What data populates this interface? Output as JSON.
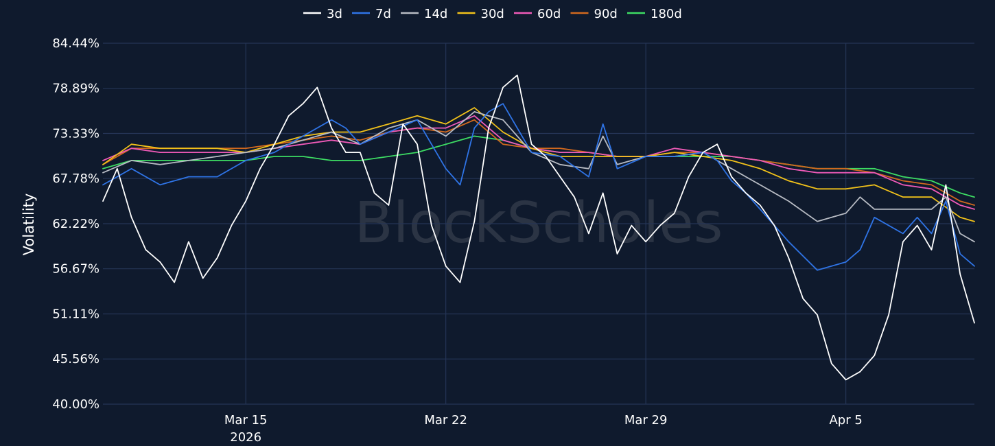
{
  "chart_data": {
    "type": "line",
    "ylabel": "Volatility",
    "watermark": "BlockScholes",
    "x_ticks": [
      {
        "date": "2026-03-15",
        "label": "Mar 15",
        "sublabel": "2026"
      },
      {
        "date": "2026-03-22",
        "label": "Mar 22",
        "sublabel": ""
      },
      {
        "date": "2026-03-29",
        "label": "Mar 29",
        "sublabel": ""
      },
      {
        "date": "2026-04-05",
        "label": "Apr 5",
        "sublabel": ""
      }
    ],
    "y_ticks": [
      "40.00%",
      "45.56%",
      "51.11%",
      "56.67%",
      "62.22%",
      "67.78%",
      "73.33%",
      "78.89%",
      "84.44%"
    ],
    "ylim": [
      40.0,
      84.44
    ],
    "xlim": [
      "2026-03-10 00:00",
      "2026-04-09 12:00"
    ],
    "grid": true,
    "legend_position": "top-center",
    "series": [
      {
        "name": "3d",
        "color": "#ffffff",
        "x": [
          "2026-03-10 00:00",
          "2026-03-10 12:00",
          "2026-03-11 00:00",
          "2026-03-11 12:00",
          "2026-03-12 00:00",
          "2026-03-12 12:00",
          "2026-03-13 00:00",
          "2026-03-13 12:00",
          "2026-03-14 00:00",
          "2026-03-14 12:00",
          "2026-03-15 00:00",
          "2026-03-15 12:00",
          "2026-03-16 00:00",
          "2026-03-16 12:00",
          "2026-03-17 00:00",
          "2026-03-17 12:00",
          "2026-03-18 00:00",
          "2026-03-18 12:00",
          "2026-03-19 00:00",
          "2026-03-19 12:00",
          "2026-03-20 00:00",
          "2026-03-20 12:00",
          "2026-03-21 00:00",
          "2026-03-21 12:00",
          "2026-03-22 00:00",
          "2026-03-22 12:00",
          "2026-03-23 00:00",
          "2026-03-23 12:00",
          "2026-03-24 00:00",
          "2026-03-24 12:00",
          "2026-03-25 00:00",
          "2026-03-25 12:00",
          "2026-03-26 00:00",
          "2026-03-26 12:00",
          "2026-03-27 00:00",
          "2026-03-27 12:00",
          "2026-03-28 00:00",
          "2026-03-28 12:00",
          "2026-03-29 00:00",
          "2026-03-29 12:00",
          "2026-03-30 00:00",
          "2026-03-30 12:00",
          "2026-03-31 00:00",
          "2026-03-31 12:00",
          "2026-04-01 00:00",
          "2026-04-01 12:00",
          "2026-04-02 00:00",
          "2026-04-02 12:00",
          "2026-04-03 00:00",
          "2026-04-03 12:00",
          "2026-04-04 00:00",
          "2026-04-04 12:00",
          "2026-04-05 00:00",
          "2026-04-05 12:00",
          "2026-04-06 00:00",
          "2026-04-06 12:00",
          "2026-04-07 00:00",
          "2026-04-07 12:00",
          "2026-04-08 00:00",
          "2026-04-08 12:00",
          "2026-04-09 00:00",
          "2026-04-09 12:00"
        ],
        "y": [
          65.0,
          69.0,
          63.0,
          59.0,
          57.5,
          55.0,
          60.0,
          55.5,
          58.0,
          62.0,
          65.0,
          69.0,
          72.0,
          75.5,
          77.0,
          79.0,
          74.0,
          71.0,
          71.0,
          66.0,
          64.5,
          74.5,
          72.0,
          62.0,
          57.0,
          55.0,
          62.5,
          74.0,
          79.0,
          80.5,
          72.0,
          70.5,
          68.0,
          65.5,
          61.0,
          66.0,
          58.5,
          62.0,
          60.0,
          62.0,
          63.5,
          68.0,
          71.0,
          72.0,
          68.0,
          66.0,
          64.5,
          62.0,
          58.0,
          53.0,
          51.0,
          45.0,
          43.0,
          44.0,
          46.0,
          51.0,
          60.0,
          62.0,
          59.0,
          67.0,
          56.0,
          50.0
        ]
      },
      {
        "name": "7d",
        "color": "#2f74e6",
        "x": [
          "2026-03-10 00:00",
          "2026-03-11 00:00",
          "2026-03-12 00:00",
          "2026-03-13 00:00",
          "2026-03-14 00:00",
          "2026-03-15 00:00",
          "2026-03-16 00:00",
          "2026-03-17 00:00",
          "2026-03-18 00:00",
          "2026-03-18 12:00",
          "2026-03-19 00:00",
          "2026-03-20 00:00",
          "2026-03-21 00:00",
          "2026-03-22 00:00",
          "2026-03-22 12:00",
          "2026-03-23 00:00",
          "2026-03-23 12:00",
          "2026-03-24 00:00",
          "2026-03-25 00:00",
          "2026-03-26 00:00",
          "2026-03-27 00:00",
          "2026-03-27 12:00",
          "2026-03-28 00:00",
          "2026-03-29 00:00",
          "2026-03-30 00:00",
          "2026-03-31 00:00",
          "2026-03-31 12:00",
          "2026-04-01 00:00",
          "2026-04-01 12:00",
          "2026-04-02 00:00",
          "2026-04-02 12:00",
          "2026-04-03 00:00",
          "2026-04-04 00:00",
          "2026-04-05 00:00",
          "2026-04-05 12:00",
          "2026-04-06 00:00",
          "2026-04-07 00:00",
          "2026-04-07 12:00",
          "2026-04-08 00:00",
          "2026-04-08 12:00",
          "2026-04-09 00:00",
          "2026-04-09 12:00"
        ],
        "y": [
          67.0,
          69.0,
          67.0,
          68.0,
          68.0,
          70.0,
          71.0,
          73.0,
          75.0,
          74.0,
          72.0,
          73.5,
          75.0,
          69.0,
          67.0,
          74.0,
          76.0,
          77.0,
          71.0,
          70.5,
          68.0,
          74.5,
          69.0,
          70.5,
          70.5,
          71.0,
          70.0,
          67.5,
          66.0,
          64.0,
          62.0,
          60.0,
          56.5,
          57.5,
          59.0,
          63.0,
          61.0,
          63.0,
          61.0,
          65.0,
          58.5,
          57.0
        ]
      },
      {
        "name": "14d",
        "color": "#b8bcc4",
        "x": [
          "2026-03-10 00:00",
          "2026-03-11 00:00",
          "2026-03-12 00:00",
          "2026-03-13 00:00",
          "2026-03-14 00:00",
          "2026-03-15 00:00",
          "2026-03-16 00:00",
          "2026-03-17 00:00",
          "2026-03-18 00:00",
          "2026-03-19 00:00",
          "2026-03-20 00:00",
          "2026-03-21 00:00",
          "2026-03-22 00:00",
          "2026-03-23 00:00",
          "2026-03-24 00:00",
          "2026-03-25 00:00",
          "2026-03-26 00:00",
          "2026-03-27 00:00",
          "2026-03-27 12:00",
          "2026-03-28 00:00",
          "2026-03-29 00:00",
          "2026-03-30 00:00",
          "2026-03-31 00:00",
          "2026-04-01 00:00",
          "2026-04-01 12:00",
          "2026-04-02 00:00",
          "2026-04-03 00:00",
          "2026-04-04 00:00",
          "2026-04-05 00:00",
          "2026-04-05 12:00",
          "2026-04-06 00:00",
          "2026-04-07 00:00",
          "2026-04-08 00:00",
          "2026-04-08 12:00",
          "2026-04-09 00:00",
          "2026-04-09 12:00"
        ],
        "y": [
          68.5,
          70.0,
          69.5,
          70.0,
          70.5,
          71.0,
          71.5,
          72.5,
          73.5,
          72.0,
          74.0,
          75.0,
          73.0,
          76.0,
          75.0,
          71.0,
          69.5,
          69.0,
          73.0,
          69.5,
          70.5,
          70.5,
          71.0,
          69.0,
          68.0,
          67.0,
          65.0,
          62.5,
          63.5,
          65.5,
          64.0,
          64.0,
          64.0,
          65.5,
          61.0,
          60.0
        ]
      },
      {
        "name": "30d",
        "color": "#f2c21a",
        "x": [
          "2026-03-10 00:00",
          "2026-03-11 00:00",
          "2026-03-12 00:00",
          "2026-03-13 00:00",
          "2026-03-14 00:00",
          "2026-03-15 00:00",
          "2026-03-16 00:00",
          "2026-03-17 00:00",
          "2026-03-18 00:00",
          "2026-03-19 00:00",
          "2026-03-20 00:00",
          "2026-03-21 00:00",
          "2026-03-22 00:00",
          "2026-03-23 00:00",
          "2026-03-24 00:00",
          "2026-03-25 00:00",
          "2026-03-26 00:00",
          "2026-03-27 00:00",
          "2026-03-28 00:00",
          "2026-03-29 00:00",
          "2026-03-30 00:00",
          "2026-03-31 00:00",
          "2026-04-01 00:00",
          "2026-04-02 00:00",
          "2026-04-03 00:00",
          "2026-04-04 00:00",
          "2026-04-05 00:00",
          "2026-04-06 00:00",
          "2026-04-07 00:00",
          "2026-04-08 00:00",
          "2026-04-09 00:00",
          "2026-04-09 12:00"
        ],
        "y": [
          69.5,
          72.0,
          71.5,
          71.5,
          71.5,
          71.0,
          72.0,
          73.0,
          73.5,
          73.5,
          74.5,
          75.5,
          74.5,
          76.5,
          73.5,
          71.5,
          70.5,
          70.5,
          70.5,
          70.5,
          71.0,
          70.5,
          70.0,
          69.0,
          67.5,
          66.5,
          66.5,
          67.0,
          65.5,
          65.5,
          63.0,
          62.5
        ]
      },
      {
        "name": "60d",
        "color": "#ef5ab8",
        "x": [
          "2026-03-10 00:00",
          "2026-03-11 00:00",
          "2026-03-12 00:00",
          "2026-03-13 00:00",
          "2026-03-14 00:00",
          "2026-03-15 00:00",
          "2026-03-16 00:00",
          "2026-03-17 00:00",
          "2026-03-18 00:00",
          "2026-03-19 00:00",
          "2026-03-20 00:00",
          "2026-03-21 00:00",
          "2026-03-22 00:00",
          "2026-03-23 00:00",
          "2026-03-24 00:00",
          "2026-03-25 00:00",
          "2026-03-26 00:00",
          "2026-03-27 00:00",
          "2026-03-28 00:00",
          "2026-03-29 00:00",
          "2026-03-30 00:00",
          "2026-03-31 00:00",
          "2026-04-01 00:00",
          "2026-04-02 00:00",
          "2026-04-03 00:00",
          "2026-04-04 00:00",
          "2026-04-05 00:00",
          "2026-04-06 00:00",
          "2026-04-07 00:00",
          "2026-04-08 00:00",
          "2026-04-09 00:00",
          "2026-04-09 12:00"
        ],
        "y": [
          70.0,
          71.5,
          71.0,
          71.0,
          71.0,
          71.0,
          71.5,
          72.0,
          72.5,
          72.0,
          73.5,
          74.0,
          74.0,
          75.5,
          72.5,
          71.5,
          71.0,
          71.0,
          70.5,
          70.5,
          71.5,
          71.0,
          70.5,
          70.0,
          69.0,
          68.5,
          68.5,
          68.5,
          67.0,
          66.5,
          64.5,
          64.0
        ]
      },
      {
        "name": "90d",
        "color": "#d2691e",
        "x": [
          "2026-03-10 00:00",
          "2026-03-11 00:00",
          "2026-03-12 00:00",
          "2026-03-13 00:00",
          "2026-03-14 00:00",
          "2026-03-15 00:00",
          "2026-03-16 00:00",
          "2026-03-17 00:00",
          "2026-03-18 00:00",
          "2026-03-19 00:00",
          "2026-03-20 00:00",
          "2026-03-21 00:00",
          "2026-03-22 00:00",
          "2026-03-23 00:00",
          "2026-03-24 00:00",
          "2026-03-25 00:00",
          "2026-03-26 00:00",
          "2026-03-27 00:00",
          "2026-03-28 00:00",
          "2026-03-29 00:00",
          "2026-03-30 00:00",
          "2026-03-31 00:00",
          "2026-04-01 00:00",
          "2026-04-02 00:00",
          "2026-04-03 00:00",
          "2026-04-04 00:00",
          "2026-04-05 00:00",
          "2026-04-06 00:00",
          "2026-04-07 00:00",
          "2026-04-08 00:00",
          "2026-04-09 00:00",
          "2026-04-09 12:00"
        ],
        "y": [
          69.5,
          71.5,
          71.5,
          71.5,
          71.5,
          71.5,
          72.0,
          72.5,
          73.0,
          72.5,
          73.5,
          74.0,
          73.5,
          75.0,
          72.0,
          71.5,
          71.5,
          71.0,
          70.5,
          70.5,
          71.0,
          71.0,
          70.5,
          70.0,
          69.5,
          69.0,
          69.0,
          68.5,
          67.5,
          67.0,
          65.0,
          64.5
        ]
      },
      {
        "name": "180d",
        "color": "#3ddc63",
        "x": [
          "2026-03-10 00:00",
          "2026-03-11 00:00",
          "2026-03-12 00:00",
          "2026-03-13 00:00",
          "2026-03-14 00:00",
          "2026-03-15 00:00",
          "2026-03-16 00:00",
          "2026-03-17 00:00",
          "2026-03-18 00:00",
          "2026-03-19 00:00",
          "2026-03-20 00:00",
          "2026-03-21 00:00",
          "2026-03-22 00:00",
          "2026-03-23 00:00",
          "2026-03-24 00:00",
          "2026-03-25 00:00",
          "2026-03-26 00:00",
          "2026-03-27 00:00",
          "2026-03-28 00:00",
          "2026-03-29 00:00",
          "2026-03-30 00:00",
          "2026-03-31 00:00",
          "2026-04-01 00:00",
          "2026-04-02 00:00",
          "2026-04-03 00:00",
          "2026-04-04 00:00",
          "2026-04-05 00:00",
          "2026-04-06 00:00",
          "2026-04-07 00:00",
          "2026-04-08 00:00",
          "2026-04-09 00:00",
          "2026-04-09 12:00"
        ],
        "y": [
          69.0,
          70.0,
          70.0,
          70.0,
          70.0,
          70.0,
          70.5,
          70.5,
          70.0,
          70.0,
          70.5,
          71.0,
          72.0,
          73.0,
          72.5,
          71.5,
          71.0,
          71.0,
          70.5,
          70.5,
          70.5,
          70.5,
          70.5,
          70.0,
          69.5,
          69.0,
          69.0,
          69.0,
          68.0,
          67.5,
          66.0,
          65.5
        ]
      }
    ]
  }
}
